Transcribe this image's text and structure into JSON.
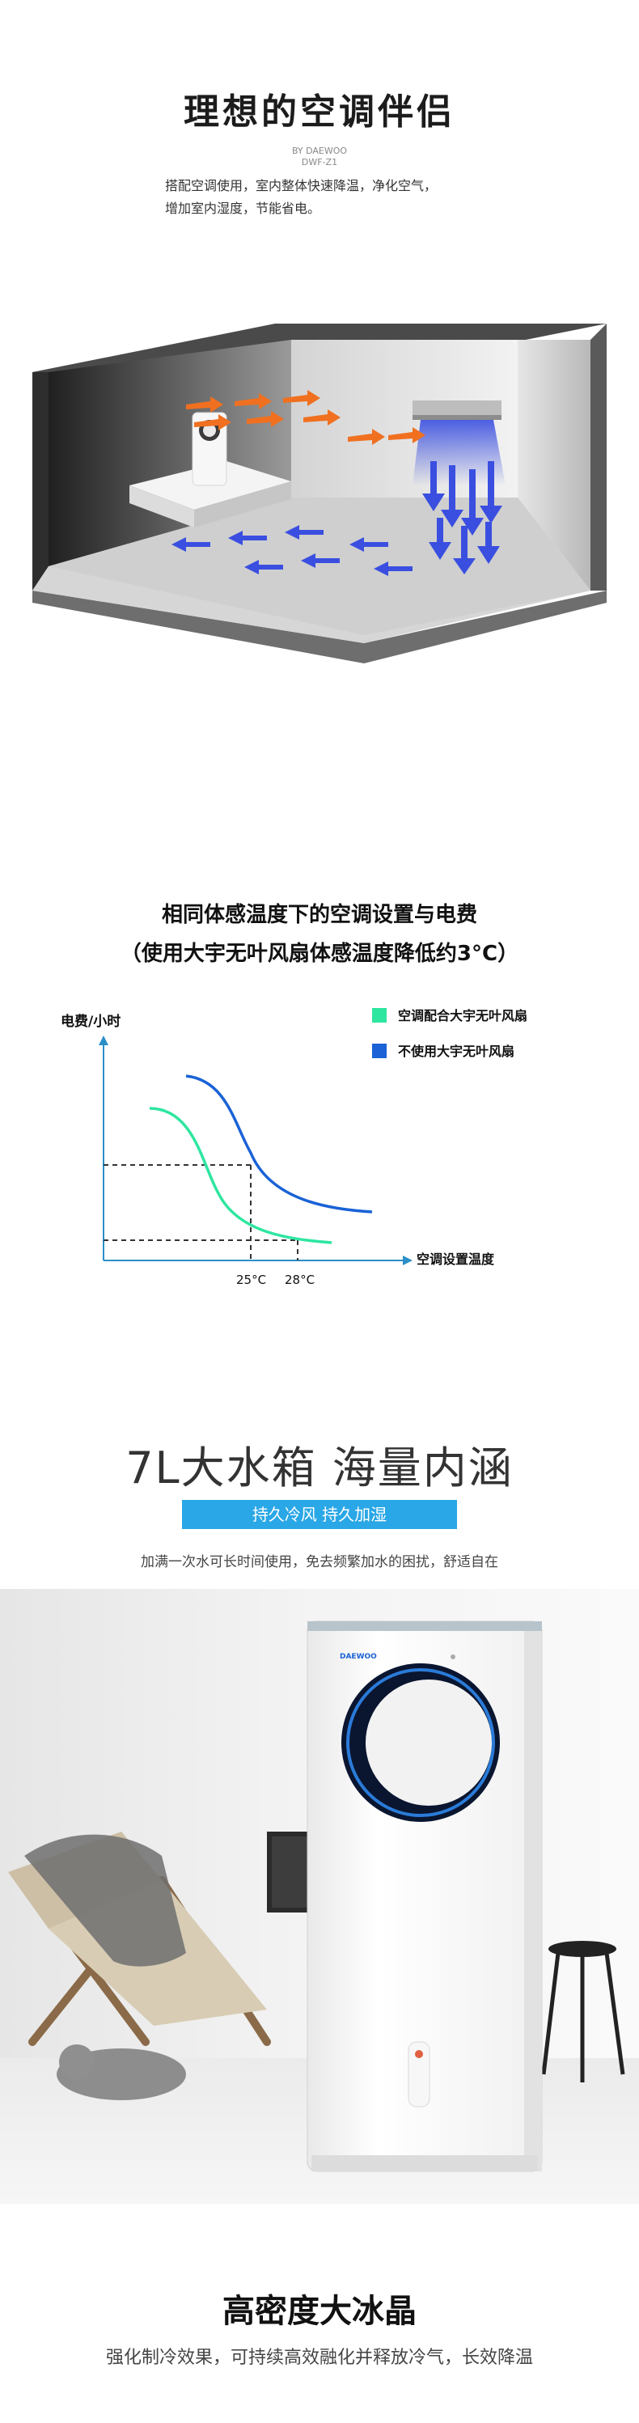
{
  "section1": {
    "title": "理想的空调伴侣",
    "brand_line1": "BY DAEWOO",
    "brand_line2": "DWF-Z1",
    "desc_line1": "搭配空调使用，室内整体快速降温，净化空气，",
    "desc_line2": "增加室内湿度，节能省电。"
  },
  "section2": {
    "title": "相同体感温度下的空调设置与电费",
    "subtitle": "（使用大宇无叶风扇体感温度降低约3°C）",
    "chart_data": {
      "type": "line",
      "ylabel": "电费/小时",
      "xlabel": "空调设置温度",
      "x_ticks": [
        "25°C",
        "28°C"
      ],
      "legend_position": "top-right",
      "series": [
        {
          "name": "空调配合大宇无叶风扇",
          "color": "#2ee6a0",
          "shape": "decreasing-s-curve-lower"
        },
        {
          "name": "不使用大宇无叶风扇",
          "color": "#1a62d6",
          "shape": "decreasing-s-curve-higher"
        }
      ]
    }
  },
  "section3": {
    "title": "7L大水箱  海量内涵",
    "pill": "持久冷风  持久加湿",
    "desc": "加满一次水可长时间使用，免去频繁加水的困扰，舒适自在",
    "brand_logo": "DAEWOO"
  },
  "section4": {
    "title": "高密度大冰晶",
    "desc": "强化制冷效果，可持续高效融化并释放冷气，长效降温"
  },
  "colors": {
    "accent_blue": "#2aa7e6",
    "arrow_orange": "#f07020",
    "arrow_blue": "#3a4fe0",
    "series_green": "#2ee6a0",
    "series_blue": "#1a62d6"
  }
}
